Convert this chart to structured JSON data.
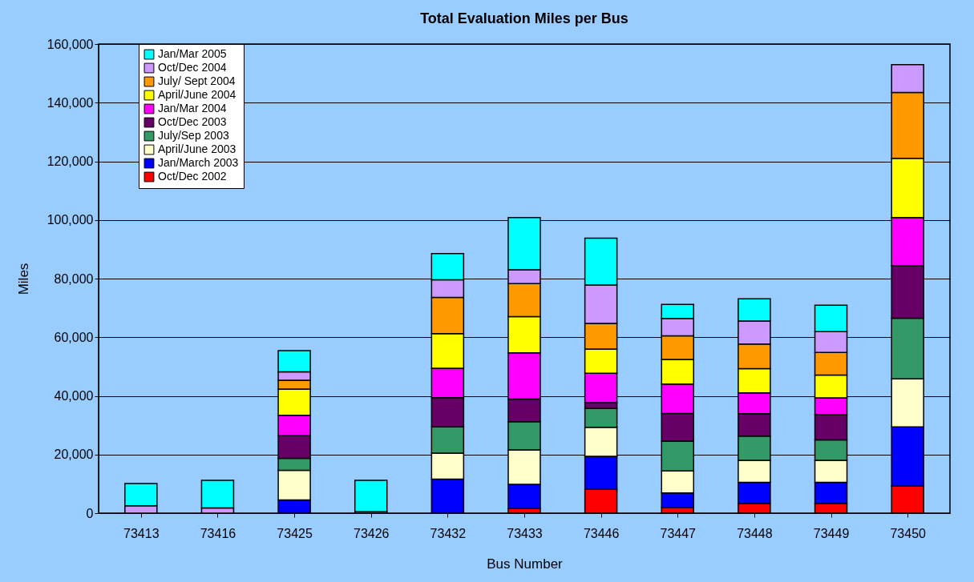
{
  "chart_data": {
    "type": "bar",
    "title": "Total Evaluation Miles per Bus",
    "xlabel": "Bus Number",
    "ylabel": "Miles",
    "categories": [
      "73413",
      "73416",
      "73425",
      "73426",
      "73432",
      "73433",
      "73446",
      "73447",
      "73448",
      "73449",
      "73450"
    ],
    "stacked": true,
    "ylim": [
      0,
      160000
    ],
    "yticks": [
      0,
      {
        "value": 20000,
        "label": "20,000"
      },
      {
        "value": 40000,
        "label": "40,000"
      },
      {
        "value": 60000,
        "label": "60,000"
      },
      {
        "value": 80000,
        "label": "80,000"
      },
      {
        "value": 100000,
        "label": "100,000"
      },
      {
        "value": 120000,
        "label": "120,000"
      },
      {
        "value": 140000,
        "label": "140,000"
      },
      {
        "value": 160000,
        "label": "160,000"
      }
    ],
    "grid": "y",
    "legend": "top left",
    "series": [
      {
        "name": "Oct/Dec 2002",
        "color": "#ff0000",
        "values": [
          null,
          null,
          null,
          null,
          null,
          1600,
          8100,
          2000,
          3300,
          3300,
          9200
        ]
      },
      {
        "name": "Jan/March 2003",
        "color": "#0000ff",
        "values": [
          null,
          null,
          4500,
          null,
          11600,
          8200,
          11300,
          4900,
          7200,
          7200,
          20200
        ]
      },
      {
        "name": "April/June 2003",
        "color": "#ffffcc",
        "values": [
          null,
          null,
          10100,
          null,
          8900,
          11800,
          9900,
          7500,
          7500,
          7500,
          16400
        ]
      },
      {
        "name": "July/Sep 2003",
        "color": "#339966",
        "values": [
          null,
          null,
          4100,
          null,
          8900,
          9600,
          6500,
          10200,
          8300,
          7000,
          20700
        ]
      },
      {
        "name": "Oct/Dec 2003",
        "color": "#660066",
        "values": [
          null,
          null,
          7700,
          null,
          10000,
          7700,
          1900,
          9400,
          7600,
          8600,
          17900
        ]
      },
      {
        "name": "Jan/Mar 2004",
        "color": "#ff00ff",
        "values": [
          null,
          null,
          7000,
          null,
          10000,
          15800,
          10000,
          10000,
          7100,
          5700,
          16400
        ]
      },
      {
        "name": "April/June 2004",
        "color": "#ffff00",
        "values": [
          null,
          null,
          8900,
          null,
          11800,
          12300,
          8300,
          8400,
          8300,
          7800,
          20200
        ]
      },
      {
        "name": "July/ Sept 2004",
        "color": "#ff9900",
        "values": [
          null,
          null,
          3000,
          null,
          12400,
          11300,
          8700,
          8100,
          8400,
          7700,
          22500
        ]
      },
      {
        "name": "Oct/Dec 2004",
        "color": "#cc99ff",
        "values": [
          2500,
          1800,
          2900,
          500,
          6000,
          4700,
          13100,
          5900,
          7800,
          7100,
          9500
        ]
      },
      {
        "name": "Jan/Mar 2005",
        "color": "#00ffff",
        "values": [
          7600,
          9400,
          7200,
          10700,
          8900,
          17800,
          16000,
          4800,
          7600,
          9000,
          null
        ]
      }
    ]
  }
}
